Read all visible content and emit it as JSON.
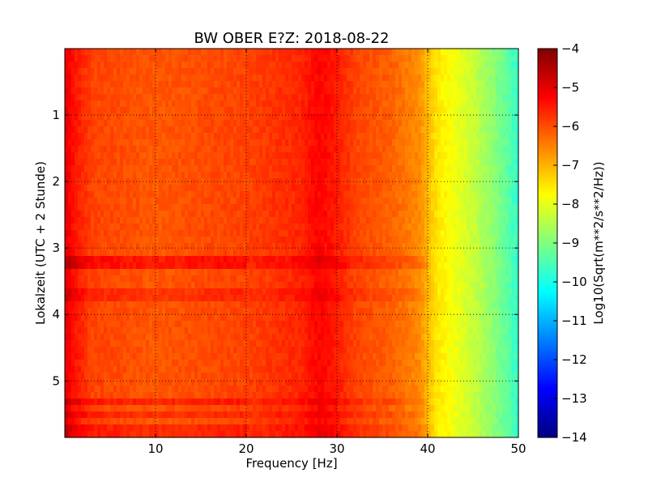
{
  "chart_data": {
    "type": "heatmap",
    "title": "BW OBER E?Z: 2018-08-22",
    "xlabel": "Frequency [Hz]",
    "ylabel": "Lokalzeit (UTC + 2 Stunde)",
    "xlim": [
      0,
      50
    ],
    "ylim": [
      5.85,
      0
    ],
    "x_ticks": [
      10,
      20,
      30,
      40,
      50
    ],
    "y_ticks": [
      1,
      2,
      3,
      4,
      5
    ],
    "grid": true,
    "colormap": "jet",
    "colorbar": {
      "label": "Log10(Sqrt(m**2/s**2/Hz))",
      "range": [
        -14,
        -4
      ],
      "ticks": [
        -4,
        -5,
        -6,
        -7,
        -8,
        -9,
        -10,
        -11,
        -12,
        -13,
        -14
      ]
    },
    "frequency_profile_hz": [
      0,
      1,
      3,
      10,
      20,
      26,
      28,
      30,
      32,
      36,
      39,
      41,
      43,
      45,
      47,
      49,
      50
    ],
    "frequency_profile_value": [
      -5.0,
      -5.4,
      -5.9,
      -6.1,
      -5.9,
      -5.6,
      -5.25,
      -5.5,
      -5.9,
      -6.2,
      -6.6,
      -7.5,
      -7.9,
      -8.3,
      -8.8,
      -9.4,
      -9.8
    ],
    "time_features": [
      {
        "time": 3.22,
        "delta": 0.6
      },
      {
        "time": 3.7,
        "delta": 0.3
      },
      {
        "time": 5.35,
        "delta": 0.45
      },
      {
        "time": 5.5,
        "delta": 0.35
      },
      {
        "time": 5.75,
        "delta": 0.4
      }
    ]
  }
}
